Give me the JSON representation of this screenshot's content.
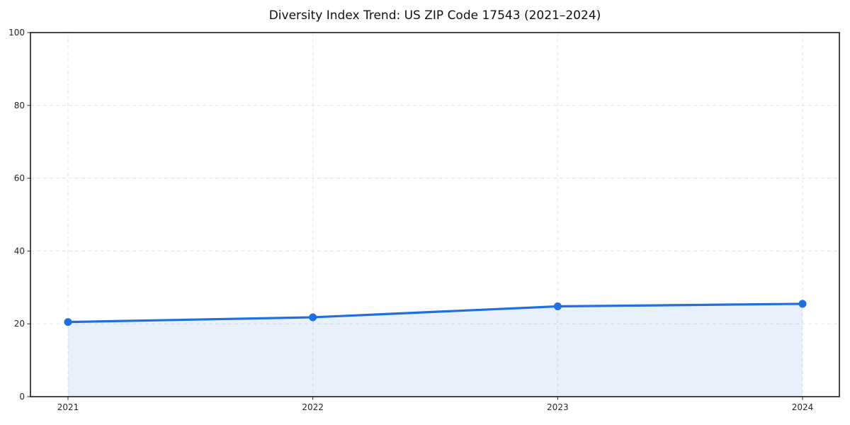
{
  "chart_data": {
    "type": "line",
    "title": "Diversity Index Trend: US ZIP Code 17543 (2021–2024)",
    "series": [
      {
        "name": "Diversity Index",
        "x": [
          2021,
          2022,
          2023,
          2024
        ],
        "values": [
          20.5,
          21.8,
          24.8,
          25.5
        ]
      }
    ],
    "categories": [
      "2021",
      "2022",
      "2023",
      "2024"
    ],
    "xlabel": "",
    "ylabel": "",
    "ylim": [
      0,
      100
    ],
    "yticks": [
      0,
      20,
      40,
      60,
      80,
      100
    ],
    "xticks": [
      "2021",
      "2022",
      "2023",
      "2024"
    ],
    "grid": true,
    "grid_style": "dashed",
    "legend": false,
    "marker": "circle",
    "colors": {
      "line": "#1f6fe0",
      "marker": "#1f6fe0",
      "area_fill": "#1f6fe0",
      "area_opacity": 0.1,
      "gridline": "#e3e3e3",
      "spine": "#1a1a1a",
      "tick_text": "#262626",
      "title_text": "#111111",
      "background": "#ffffff"
    }
  }
}
